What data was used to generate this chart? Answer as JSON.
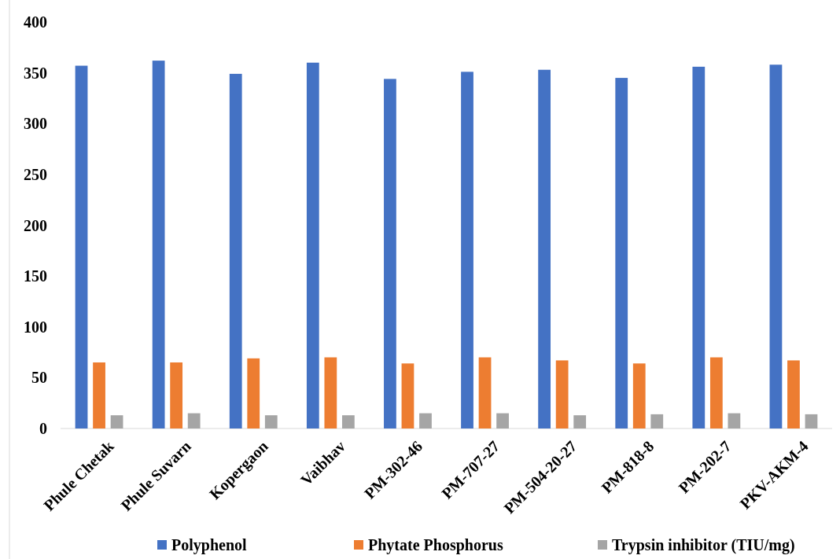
{
  "chart_data": {
    "type": "bar",
    "categories": [
      "Phule Chetak",
      "Phule Suvarn",
      "Kopergaon",
      "Vaibhav",
      "PM-302-46",
      "PM-707-27",
      "PM-504-20-27",
      "PM-818-8",
      "PM-202-7",
      "PKV-AKM-4"
    ],
    "series": [
      {
        "name": "Polyphenol",
        "color": "#4472c4",
        "values": [
          357,
          362,
          349,
          360,
          344,
          351,
          353,
          345,
          356,
          358
        ]
      },
      {
        "name": "Phytate Phosphorus",
        "color": "#ed7d31",
        "values": [
          65,
          65,
          69,
          70,
          64,
          70,
          67,
          64,
          70,
          67
        ]
      },
      {
        "name": "Trypsin inhibitor (TIU/mg)",
        "color": "#a5a5a5",
        "values": [
          13,
          15,
          13,
          13,
          15,
          15,
          13,
          14,
          15,
          14
        ]
      }
    ],
    "ylim": [
      0,
      400
    ],
    "yticks": [
      0,
      50,
      100,
      150,
      200,
      250,
      300,
      350,
      400
    ],
    "grid": false,
    "legend": "bottom"
  }
}
